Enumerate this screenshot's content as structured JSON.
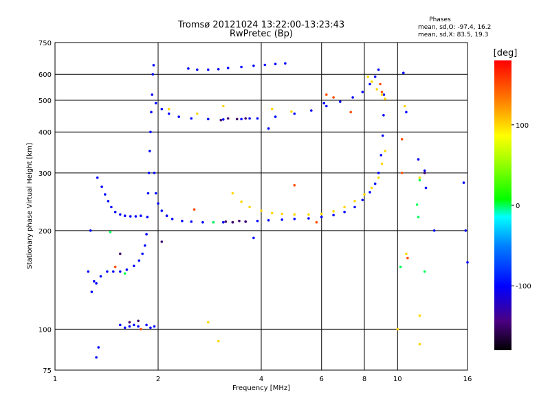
{
  "chart_data": {
    "type": "scatter",
    "title": "Tromsø 20121024 13:22:00-13:23:43",
    "subtitle": "RwPretec (Bp)",
    "xlabel": "Frequency [MHz]",
    "ylabel": "Stationary phase Virtual Height [km]",
    "x_scale": "log",
    "y_scale": "log",
    "xlim": [
      1,
      16
    ],
    "ylim": [
      75,
      750
    ],
    "x_ticks": [
      1,
      2,
      4,
      6,
      8,
      10,
      16
    ],
    "y_ticks": [
      75,
      100,
      200,
      300,
      400,
      500,
      600,
      750
    ],
    "grid": true,
    "legend": {
      "title": "Phases",
      "lines": [
        "mean, sd,O:  -97.4, 16.2",
        "mean, sd,X:   83.5, 19.3"
      ],
      "position": "top-right"
    },
    "colorbar": {
      "label": "[deg]",
      "ticks": [
        100,
        0,
        -100
      ],
      "range": [
        -180,
        180
      ]
    },
    "series": [
      {
        "phase": -100,
        "points": [
          [
            1.27,
            200
          ],
          [
            1.33,
            290
          ],
          [
            1.37,
            272
          ],
          [
            1.4,
            258
          ],
          [
            1.43,
            246
          ],
          [
            1.46,
            236
          ],
          [
            1.5,
            228
          ],
          [
            1.55,
            224
          ],
          [
            1.6,
            222
          ],
          [
            1.66,
            221
          ],
          [
            1.72,
            221
          ],
          [
            1.78,
            222
          ],
          [
            1.28,
            130
          ],
          [
            1.32,
            138
          ],
          [
            1.36,
            145
          ],
          [
            1.42,
            150
          ],
          [
            1.48,
            150
          ],
          [
            1.55,
            150
          ],
          [
            1.62,
            152
          ],
          [
            1.7,
            156
          ],
          [
            1.76,
            162
          ],
          [
            1.8,
            170
          ],
          [
            1.83,
            180
          ],
          [
            1.85,
            195
          ],
          [
            1.86,
            220
          ],
          [
            1.87,
            260
          ],
          [
            1.88,
            300
          ],
          [
            1.89,
            350
          ],
          [
            1.9,
            400
          ],
          [
            1.91,
            460
          ],
          [
            1.92,
            520
          ],
          [
            1.93,
            600
          ],
          [
            1.94,
            640
          ],
          [
            1.95,
            300
          ],
          [
            1.97,
            260
          ],
          [
            2.0,
            242
          ],
          [
            2.05,
            230
          ],
          [
            2.12,
            222
          ],
          [
            2.2,
            217
          ],
          [
            2.35,
            214
          ],
          [
            2.5,
            213
          ],
          [
            2.7,
            212
          ],
          [
            2.9,
            212
          ],
          [
            3.1,
            212
          ],
          [
            3.3,
            212
          ],
          [
            3.6,
            213
          ],
          [
            3.9,
            214
          ],
          [
            4.2,
            215
          ],
          [
            4.6,
            216
          ],
          [
            5.0,
            217
          ],
          [
            5.5,
            218
          ],
          [
            6.0,
            220
          ],
          [
            6.5,
            223
          ],
          [
            7.0,
            228
          ],
          [
            7.5,
            236
          ],
          [
            7.9,
            248
          ],
          [
            8.3,
            262
          ],
          [
            8.6,
            278
          ],
          [
            8.8,
            300
          ],
          [
            8.95,
            340
          ],
          [
            9.05,
            390
          ],
          [
            9.1,
            450
          ],
          [
            9.12,
            520
          ],
          [
            1.97,
            490
          ],
          [
            2.05,
            470
          ],
          [
            2.15,
            455
          ],
          [
            2.3,
            445
          ],
          [
            2.5,
            440
          ],
          [
            2.8,
            438
          ],
          [
            3.1,
            437
          ],
          [
            3.5,
            438
          ],
          [
            3.9,
            440
          ],
          [
            4.4,
            445
          ],
          [
            5.0,
            455
          ],
          [
            5.6,
            465
          ],
          [
            6.2,
            480
          ],
          [
            6.8,
            495
          ],
          [
            7.4,
            510
          ],
          [
            7.9,
            530
          ],
          [
            8.3,
            560
          ],
          [
            8.6,
            590
          ],
          [
            8.8,
            620
          ],
          [
            2.45,
            625
          ],
          [
            2.6,
            620
          ],
          [
            2.8,
            620
          ],
          [
            3.0,
            622
          ],
          [
            3.2,
            627
          ],
          [
            3.5,
            632
          ],
          [
            3.8,
            637
          ],
          [
            4.1,
            641
          ],
          [
            4.4,
            645
          ],
          [
            4.7,
            648
          ],
          [
            1.55,
            103
          ],
          [
            1.6,
            101
          ],
          [
            1.65,
            102
          ],
          [
            1.7,
            103
          ],
          [
            1.75,
            102
          ],
          [
            1.85,
            103
          ],
          [
            1.9,
            101
          ],
          [
            1.95,
            102
          ],
          [
            1.25,
            150
          ],
          [
            1.3,
            140
          ],
          [
            1.34,
            88
          ],
          [
            1.32,
            82
          ],
          [
            3.8,
            190
          ],
          [
            3.7,
            440
          ],
          [
            4.2,
            410
          ],
          [
            6.1,
            490
          ],
          [
            10.4,
            606
          ],
          [
            10.6,
            460
          ],
          [
            11.5,
            330
          ],
          [
            12.0,
            305
          ],
          [
            12.1,
            270
          ],
          [
            12.8,
            200
          ],
          [
            15.6,
            280
          ],
          [
            15.8,
            200
          ],
          [
            16,
            160
          ]
        ]
      },
      {
        "phase": 100,
        "points": [
          [
            3.3,
            260
          ],
          [
            3.5,
            245
          ],
          [
            3.7,
            236
          ],
          [
            4.0,
            230
          ],
          [
            4.3,
            226
          ],
          [
            4.6,
            225
          ],
          [
            5.0,
            224
          ],
          [
            5.5,
            224
          ],
          [
            6.0,
            225
          ],
          [
            6.5,
            229
          ],
          [
            7.0,
            236
          ],
          [
            7.5,
            246
          ],
          [
            8.0,
            258
          ],
          [
            8.4,
            270
          ],
          [
            8.8,
            290
          ],
          [
            9.0,
            320
          ],
          [
            9.2,
            350
          ],
          [
            8.2,
            590
          ],
          [
            8.4,
            570
          ],
          [
            8.7,
            540
          ],
          [
            9.0,
            520
          ],
          [
            9.2,
            505
          ],
          [
            2.15,
            470
          ],
          [
            2.6,
            455
          ],
          [
            3.1,
            480
          ],
          [
            4.3,
            470
          ],
          [
            4.9,
            462
          ],
          [
            10.5,
            480
          ],
          [
            11.6,
            290
          ],
          [
            11.6,
            110
          ],
          [
            11.6,
            90
          ],
          [
            10.6,
            170
          ],
          [
            10.0,
            100
          ],
          [
            2.8,
            105
          ],
          [
            3.0,
            92
          ]
        ]
      },
      {
        "phase": 150,
        "points": [
          [
            6.2,
            520
          ],
          [
            6.5,
            510
          ],
          [
            8.9,
            560
          ],
          [
            9.0,
            530
          ],
          [
            10.3,
            300
          ],
          [
            10.3,
            380
          ],
          [
            10.7,
            165
          ],
          [
            5.8,
            212
          ],
          [
            5.0,
            275
          ],
          [
            2.55,
            232
          ],
          [
            1.78,
            100
          ],
          [
            1.5,
            155
          ],
          [
            7.3,
            460
          ]
        ]
      },
      {
        "phase": 0,
        "points": [
          [
            1.45,
            198
          ],
          [
            10.2,
            155
          ],
          [
            11.6,
            285
          ],
          [
            11.4,
            240
          ],
          [
            11.5,
            220
          ],
          [
            12.0,
            150
          ],
          [
            2.9,
            212
          ],
          [
            1.6,
            148
          ]
        ]
      },
      {
        "phase": -150,
        "points": [
          [
            3.05,
            435
          ],
          [
            3.2,
            440
          ],
          [
            3.4,
            438
          ],
          [
            3.6,
            440
          ],
          [
            3.15,
            213
          ],
          [
            3.3,
            212
          ],
          [
            3.45,
            214
          ],
          [
            3.6,
            213
          ],
          [
            2.05,
            185
          ],
          [
            1.55,
            170
          ],
          [
            1.65,
            105
          ],
          [
            1.75,
            106
          ],
          [
            12.0,
            300
          ]
        ]
      }
    ]
  }
}
